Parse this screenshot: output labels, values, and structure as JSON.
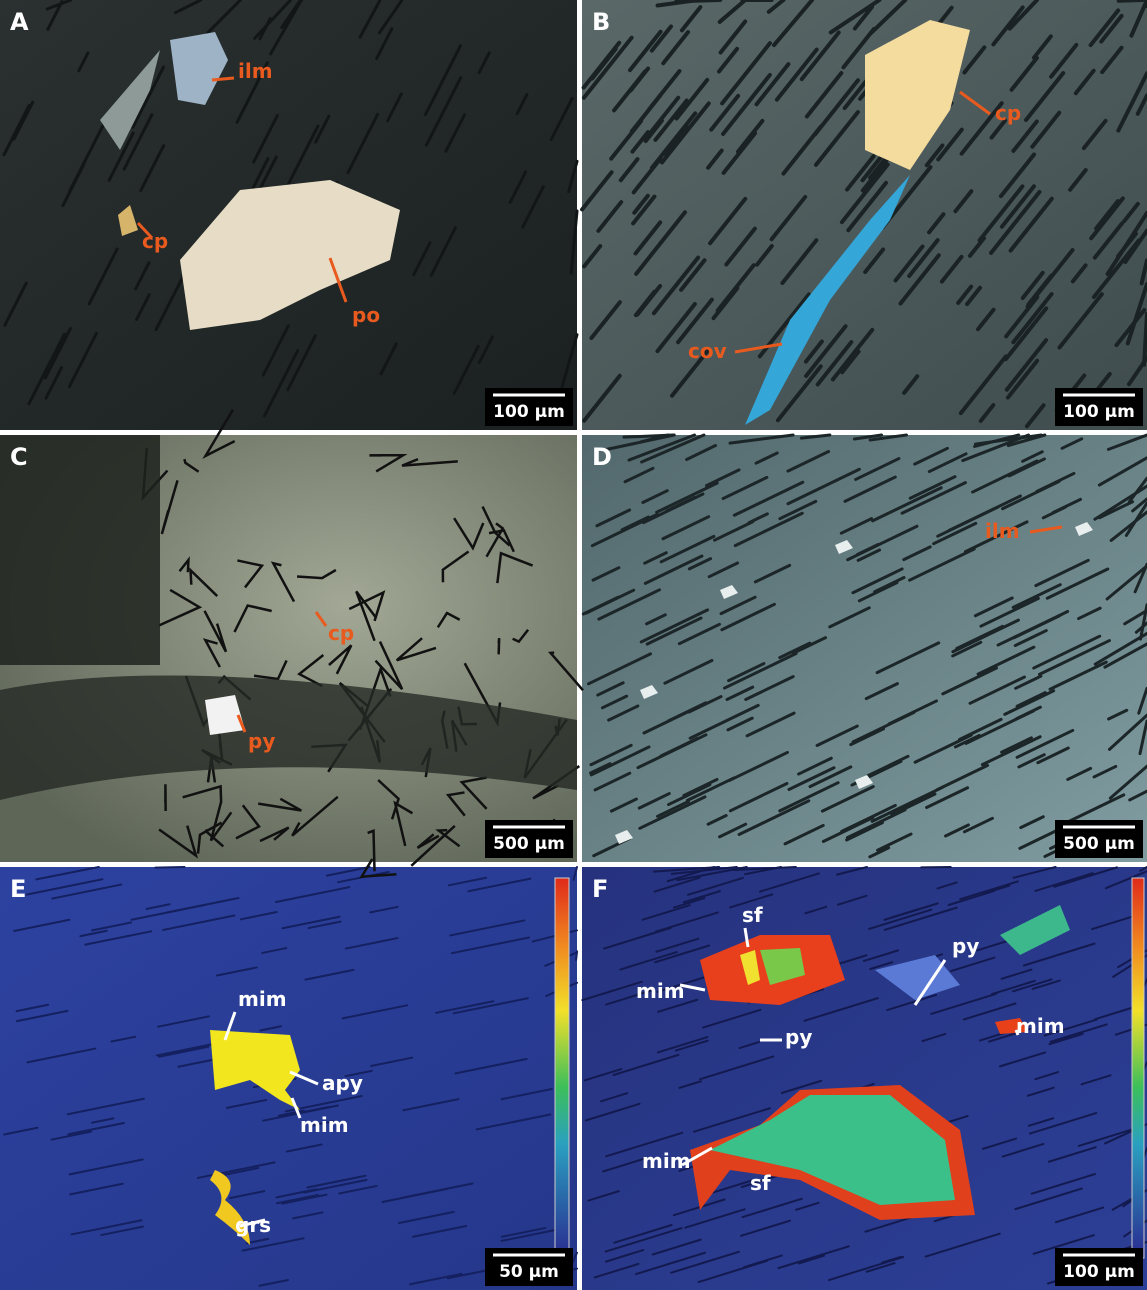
{
  "panels": [
    {
      "label": "A",
      "annotations": [
        "ilm",
        "cp",
        "po"
      ],
      "scale_bar": "100 µm"
    },
    {
      "label": "B",
      "annotations": [
        "cp",
        "cov"
      ],
      "scale_bar": "100 µm"
    },
    {
      "label": "C",
      "annotations": [
        "cp",
        "py"
      ],
      "scale_bar": "500 µm"
    },
    {
      "label": "D",
      "annotations": [
        "ilm"
      ],
      "scale_bar": "500 µm"
    },
    {
      "label": "E",
      "annotations": [
        "mim",
        "apy",
        "mim",
        "grs"
      ],
      "scale_bar": "50 µm"
    },
    {
      "label": "F",
      "annotations": [
        "py",
        "mim",
        "sf",
        "mim",
        "py",
        "mim",
        "sf"
      ],
      "scale_bar": "100 µm"
    }
  ]
}
